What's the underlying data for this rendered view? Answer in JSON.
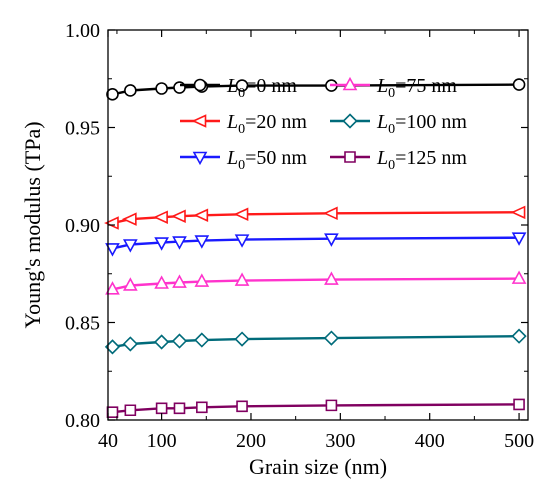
{
  "chart_data": {
    "type": "line",
    "title": "",
    "xlabel": "Grain size (nm)",
    "ylabel": "Young's modulus (TPa)",
    "xlim": [
      40,
      510
    ],
    "ylim": [
      0.8,
      1.0
    ],
    "xticks": [
      {
        "v": 40,
        "label": "40"
      },
      {
        "v": 100,
        "label": "100"
      },
      {
        "v": 200,
        "label": "200"
      },
      {
        "v": 300,
        "label": "300"
      },
      {
        "v": 400,
        "label": "400"
      },
      {
        "v": 500,
        "label": "500"
      }
    ],
    "yticks": [
      {
        "v": 0.8,
        "label": "0.80"
      },
      {
        "v": 0.85,
        "label": "0.85"
      },
      {
        "v": 0.9,
        "label": "0.90"
      },
      {
        "v": 0.95,
        "label": "0.95"
      },
      {
        "v": 1.0,
        "label": "1.00"
      }
    ],
    "x": [
      45,
      65,
      100,
      120,
      145,
      190,
      290,
      500
    ],
    "series": [
      {
        "name": "L0=0 nm",
        "sub": "0",
        "value_text": "=0 nm",
        "color": "#000000",
        "marker": "circle",
        "values": [
          0.967,
          0.969,
          0.97,
          0.9705,
          0.971,
          0.9715,
          0.9715,
          0.972
        ]
      },
      {
        "name": "L0=20 nm",
        "sub": "0",
        "value_text": "=20 nm",
        "color": "#ff1a1a",
        "marker": "triangle-left",
        "values": [
          0.901,
          0.903,
          0.904,
          0.9045,
          0.905,
          0.9055,
          0.906,
          0.9065
        ]
      },
      {
        "name": "L0=50 nm",
        "sub": "0",
        "value_text": "=50 nm",
        "color": "#1a1aff",
        "marker": "triangle-down",
        "values": [
          0.888,
          0.89,
          0.891,
          0.8915,
          0.892,
          0.8925,
          0.893,
          0.8935
        ]
      },
      {
        "name": "L0=75 nm",
        "sub": "0",
        "value_text": "=75 nm",
        "color": "#ff33cc",
        "marker": "triangle-up",
        "values": [
          0.867,
          0.869,
          0.87,
          0.8705,
          0.871,
          0.8715,
          0.872,
          0.8725
        ]
      },
      {
        "name": "L0=100 nm",
        "sub": "0",
        "value_text": "=100 nm",
        "color": "#006b7a",
        "marker": "diamond",
        "values": [
          0.8375,
          0.839,
          0.84,
          0.8405,
          0.841,
          0.8415,
          0.842,
          0.843
        ]
      },
      {
        "name": "L0=125 nm",
        "sub": "0",
        "value_text": "=125 nm",
        "color": "#800060",
        "marker": "square",
        "values": [
          0.804,
          0.805,
          0.806,
          0.806,
          0.8065,
          0.807,
          0.8075,
          0.808
        ]
      }
    ],
    "legend": {
      "position": "upper-middle",
      "main_letter": "L",
      "columns": [
        [
          0,
          1,
          2
        ],
        [
          3,
          4,
          5
        ]
      ]
    },
    "grid": false
  }
}
